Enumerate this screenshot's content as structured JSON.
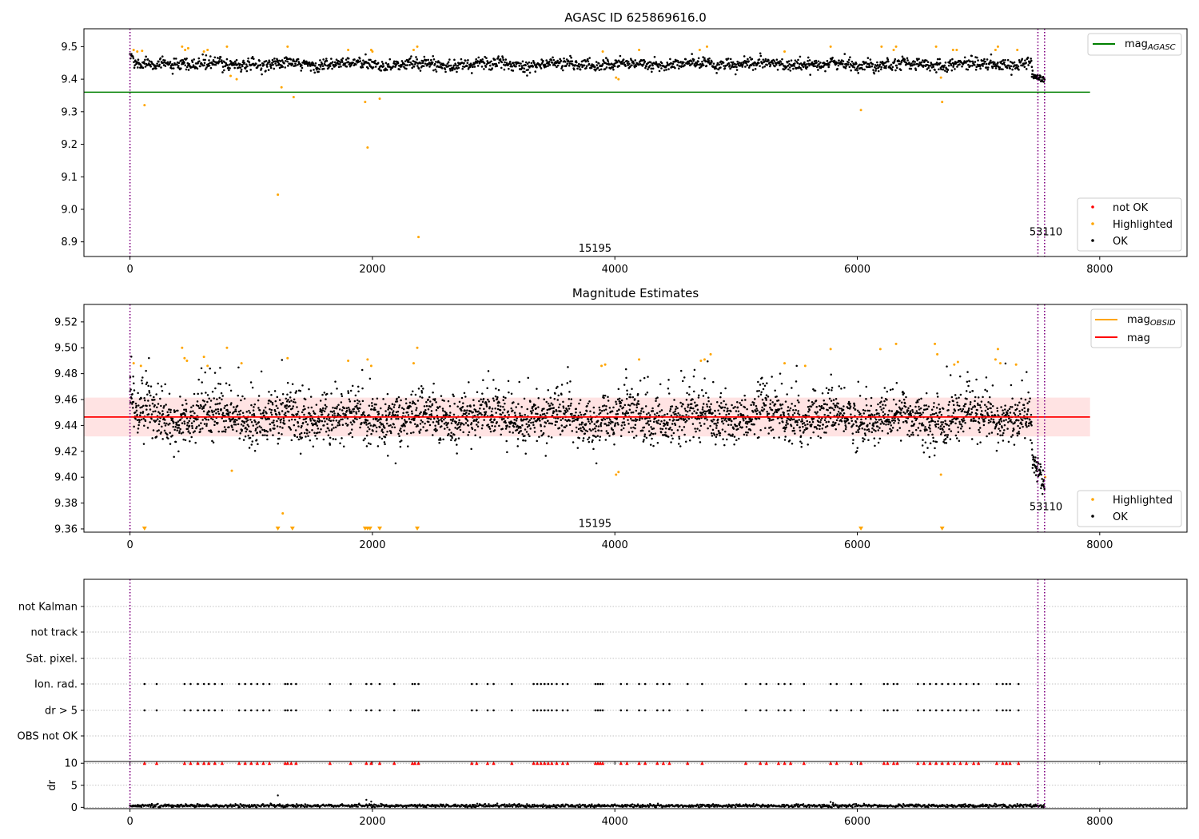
{
  "chart_data": [
    {
      "type": "scatter",
      "title": "AGASC ID 625869616.0",
      "xlim": [
        -380,
        8720
      ],
      "ylim": [
        8.855,
        9.555
      ],
      "xticks": [
        0,
        2000,
        4000,
        6000,
        8000
      ],
      "yticks": [
        8.9,
        9.0,
        9.1,
        9.2,
        9.3,
        9.4,
        9.5
      ],
      "ytick_decimals": 1,
      "grid": false,
      "legend_top": {
        "placement": "top-right",
        "entries": [
          {
            "label": "mag",
            "sub": "AGASC",
            "kind": "line",
            "color": "#008000"
          }
        ]
      },
      "legend_bottom": {
        "placement": "bottom-right",
        "entries": [
          {
            "label": "not OK",
            "kind": "dot",
            "color": "#ff0000"
          },
          {
            "label": "Highlighted",
            "kind": "dot",
            "color": "#ffa500"
          },
          {
            "label": "OK",
            "kind": "dot",
            "color": "#000000"
          }
        ]
      },
      "hline": {
        "y": 9.36,
        "color": "#008000",
        "xmax": 7920
      },
      "vlines": [
        0,
        7490,
        7545
      ],
      "obsid_labels": [
        {
          "text": "15195",
          "x": 3700,
          "y": 8.88
        },
        {
          "text": "53110",
          "x": 7420,
          "y": 8.93
        }
      ],
      "band": {
        "center": 9.446,
        "sd": 0.015
      },
      "series": [
        {
          "name": "OK",
          "color": "#000000"
        },
        {
          "name": "Highlighted",
          "color": "#ffa500",
          "points": [
            [
              30,
              9.49
            ],
            [
              60,
              9.485
            ],
            [
              100,
              9.487
            ],
            [
              120,
              9.32
            ],
            [
              430,
              9.5
            ],
            [
              455,
              9.49
            ],
            [
              480,
              9.495
            ],
            [
              610,
              9.485
            ],
            [
              640,
              9.49
            ],
            [
              800,
              9.5
            ],
            [
              830,
              9.41
            ],
            [
              880,
              9.4
            ],
            [
              1250,
              9.375
            ],
            [
              1300,
              9.5
            ],
            [
              1350,
              9.345
            ],
            [
              1800,
              9.49
            ],
            [
              1940,
              9.33
            ],
            [
              1960,
              9.19
            ],
            [
              1990,
              9.49
            ],
            [
              2000,
              9.485
            ],
            [
              2060,
              9.34
            ],
            [
              2340,
              9.49
            ],
            [
              2370,
              9.5
            ],
            [
              2380,
              8.915
            ],
            [
              1220,
              9.045
            ],
            [
              3900,
              9.485
            ],
            [
              4010,
              9.405
            ],
            [
              4030,
              9.4
            ],
            [
              4200,
              9.49
            ],
            [
              4700,
              9.49
            ],
            [
              4760,
              9.5
            ],
            [
              5400,
              9.485
            ],
            [
              5780,
              9.5
            ],
            [
              6030,
              9.305
            ],
            [
              6200,
              9.5
            ],
            [
              6300,
              9.49
            ],
            [
              6320,
              9.5
            ],
            [
              6650,
              9.5
            ],
            [
              6690,
              9.405
            ],
            [
              6700,
              9.33
            ],
            [
              6790,
              9.49
            ],
            [
              6820,
              9.49
            ],
            [
              7140,
              9.49
            ],
            [
              7160,
              9.5
            ],
            [
              7320,
              9.49
            ]
          ]
        },
        {
          "name": "not OK",
          "color": "#ff0000",
          "points": []
        }
      ]
    },
    {
      "type": "scatter",
      "title": "Magnitude Estimates",
      "xlim": [
        -380,
        8720
      ],
      "ylim": [
        9.3575,
        9.5335
      ],
      "xticks": [
        0,
        2000,
        4000,
        6000,
        8000
      ],
      "yticks": [
        9.36,
        9.38,
        9.4,
        9.42,
        9.44,
        9.46,
        9.48,
        9.5,
        9.52
      ],
      "ytick_decimals": 2,
      "grid": false,
      "legend_top": {
        "placement": "top-right",
        "entries": [
          {
            "label": "mag",
            "sub": "OBSID",
            "kind": "line",
            "color": "#ffa500"
          },
          {
            "label": "mag",
            "kind": "line",
            "color": "#ff0000"
          }
        ]
      },
      "legend_bottom": {
        "placement": "bottom-right",
        "entries": [
          {
            "label": "Highlighted",
            "kind": "dot",
            "color": "#ffa500"
          },
          {
            "label": "OK",
            "kind": "dot",
            "color": "#000000"
          }
        ]
      },
      "hline": {
        "y": 9.4465,
        "color": "#ff0000",
        "xmax": 7920
      },
      "band": {
        "y0": 9.4315,
        "y1": 9.4615,
        "xmax": 7920,
        "color": "#ffc0c0"
      },
      "vlines": [
        0,
        7490,
        7545
      ],
      "obsid_labels": [
        {
          "text": "15195",
          "x": 3700,
          "y": 9.364
        },
        {
          "text": "53110",
          "x": 7420,
          "y": 9.377
        }
      ],
      "series": [
        {
          "name": "OK",
          "color": "#000000"
        },
        {
          "name": "Highlighted",
          "color": "#ffa500",
          "points": [
            [
              30,
              9.488
            ],
            [
              90,
              9.486
            ],
            [
              430,
              9.5
            ],
            [
              450,
              9.492
            ],
            [
              470,
              9.49
            ],
            [
              610,
              9.493
            ],
            [
              640,
              9.486
            ],
            [
              800,
              9.5
            ],
            [
              840,
              9.405
            ],
            [
              920,
              9.488
            ],
            [
              1300,
              9.492
            ],
            [
              1260,
              9.372
            ],
            [
              1800,
              9.49
            ],
            [
              1960,
              9.491
            ],
            [
              1990,
              9.486
            ],
            [
              2340,
              9.488
            ],
            [
              2370,
              9.5
            ],
            [
              3890,
              9.486
            ],
            [
              3920,
              9.487
            ],
            [
              4010,
              9.402
            ],
            [
              4030,
              9.404
            ],
            [
              4200,
              9.491
            ],
            [
              4710,
              9.49
            ],
            [
              4740,
              9.491
            ],
            [
              4790,
              9.495
            ],
            [
              5400,
              9.488
            ],
            [
              5570,
              9.486
            ],
            [
              5780,
              9.499
            ],
            [
              6190,
              9.499
            ],
            [
              6320,
              9.503
            ],
            [
              6640,
              9.503
            ],
            [
              6660,
              9.495
            ],
            [
              6690,
              9.402
            ],
            [
              6800,
              9.487
            ],
            [
              6830,
              9.489
            ],
            [
              7140,
              9.491
            ],
            [
              7160,
              9.499
            ],
            [
              7180,
              9.488
            ],
            [
              7310,
              9.487
            ],
            [
              7550,
              9.4
            ]
          ]
        }
      ],
      "offscale_markers": [
        120,
        1220,
        1340,
        1940,
        1960,
        1980,
        2060,
        2370,
        6030,
        6700
      ]
    },
    {
      "type": "scatter",
      "title": "",
      "xlim": [
        -380,
        8720
      ],
      "vlines": [
        0,
        7490,
        7545
      ],
      "xticks": [
        0,
        2000,
        4000,
        6000,
        8000
      ],
      "flag_categories": [
        "not Kalman",
        "not track",
        "Sat. pixel.",
        "Ion. rad.",
        "dr > 5",
        "OBS not OK"
      ],
      "flag_points": {
        "Ion. rad.": [
          120,
          220,
          450,
          500,
          560,
          610,
          650,
          700,
          760,
          900,
          950,
          1000,
          1050,
          1100,
          1150,
          1280,
          1300,
          1330,
          1370,
          1650,
          1820,
          1950,
          1990,
          2060,
          2180,
          2330,
          2350,
          2380,
          2820,
          2860,
          2950,
          3000,
          3150,
          3330,
          3360,
          3390,
          3420,
          3450,
          3480,
          3520,
          3570,
          3610,
          3840,
          3860,
          3880,
          3900,
          4050,
          4100,
          4200,
          4250,
          4350,
          4400,
          4450,
          4600,
          4720,
          5080,
          5200,
          5250,
          5350,
          5400,
          5450,
          5560,
          5780,
          5830,
          5950,
          6030,
          6220,
          6250,
          6300,
          6330,
          6500,
          6550,
          6600,
          6650,
          6700,
          6750,
          6800,
          6850,
          6900,
          6960,
          7000,
          7150,
          7200,
          7230,
          7260,
          7330
        ],
        "dr > 5": [
          120,
          220,
          450,
          500,
          560,
          610,
          650,
          700,
          760,
          900,
          950,
          1000,
          1050,
          1100,
          1150,
          1280,
          1300,
          1330,
          1370,
          1650,
          1820,
          1950,
          1990,
          2060,
          2180,
          2330,
          2350,
          2380,
          2820,
          2860,
          2950,
          3000,
          3150,
          3330,
          3360,
          3390,
          3420,
          3450,
          3480,
          3520,
          3570,
          3610,
          3840,
          3860,
          3880,
          3900,
          4050,
          4100,
          4200,
          4250,
          4350,
          4400,
          4450,
          4600,
          4720,
          5080,
          5200,
          5250,
          5350,
          5400,
          5450,
          5560,
          5780,
          5830,
          5950,
          6030,
          6220,
          6250,
          6300,
          6330,
          6500,
          6550,
          6600,
          6650,
          6700,
          6750,
          6800,
          6850,
          6900,
          6960,
          7000,
          7150,
          7200,
          7230,
          7260,
          7330
        ]
      }
    },
    {
      "type": "scatter",
      "ylabel": "dr",
      "xlim": [
        -380,
        8720
      ],
      "ylim": [
        -0.3,
        10.4
      ],
      "yticks": [
        0,
        5,
        10
      ],
      "xticks": [
        0,
        2000,
        4000,
        6000,
        8000
      ],
      "vlines": [
        0,
        7490,
        7545
      ],
      "grid": true,
      "series": [
        {
          "name": "dr",
          "color": "#000000",
          "points": [
            [
              1220,
              2.7
            ],
            [
              1950,
              1.7
            ],
            [
              1990,
              1.3
            ],
            [
              5780,
              1.2
            ],
            [
              5800,
              1.0
            ]
          ]
        },
        {
          "name": "capped",
          "color": "#ff0000",
          "marker": "triangle",
          "y": 10,
          "x": [
            120,
            220,
            450,
            500,
            560,
            610,
            650,
            700,
            760,
            900,
            950,
            1000,
            1050,
            1100,
            1150,
            1280,
            1300,
            1330,
            1370,
            1650,
            1820,
            1950,
            1990,
            2060,
            2180,
            2330,
            2350,
            2380,
            2820,
            2860,
            2950,
            3000,
            3150,
            3330,
            3360,
            3390,
            3420,
            3450,
            3480,
            3520,
            3570,
            3610,
            3840,
            3860,
            3880,
            3900,
            4050,
            4100,
            4200,
            4250,
            4350,
            4400,
            4450,
            4600,
            4720,
            5080,
            5200,
            5250,
            5350,
            5400,
            5450,
            5560,
            5780,
            5830,
            5950,
            6030,
            6220,
            6250,
            6300,
            6330,
            6500,
            6550,
            6600,
            6650,
            6700,
            6750,
            6800,
            6850,
            6900,
            6960,
            7000,
            7150,
            7200,
            7230,
            7260,
            7330
          ]
        }
      ]
    }
  ]
}
